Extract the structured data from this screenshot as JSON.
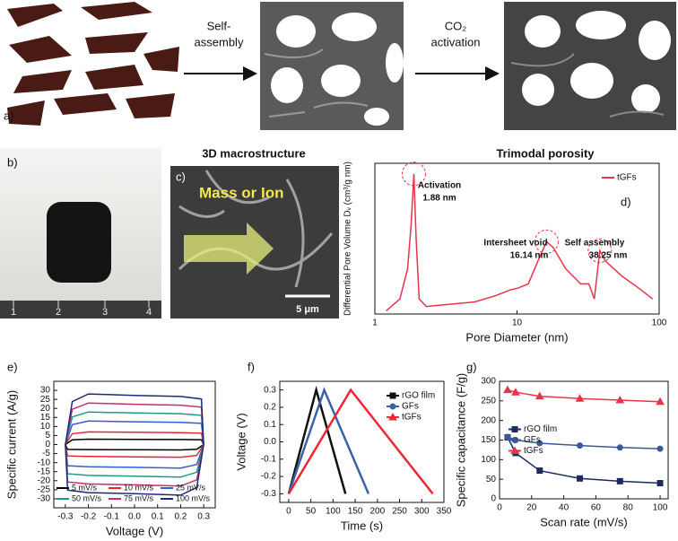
{
  "figure": {
    "panel_labels": [
      "a)",
      "b)",
      "c)"
    ],
    "arrows": [
      [
        "Self-",
        "assembly"
      ],
      [
        "CO₂",
        "activation"
      ]
    ],
    "sem_title": "3D macrostructure",
    "sem_label": "Mass or Ion",
    "scale_bar": "5 μm",
    "ruler": [
      "1",
      "2",
      "3",
      "4"
    ]
  },
  "chart_data": [
    {
      "type": "line",
      "panel_label": "d)",
      "title": "Trimodal porosity",
      "x_label": "Pore Diameter (nm)",
      "y_label": "Differential Pore Volume Dᵥ (cm³/g nm)",
      "xscale": "log",
      "xlim": [
        1,
        100
      ],
      "xticks": [
        1,
        10,
        100
      ],
      "ylim": [
        0,
        1
      ],
      "yticks": [],
      "x": [
        1.2,
        1.5,
        1.7,
        1.8,
        1.88,
        1.95,
        2.05,
        2.3,
        3,
        5,
        7,
        9,
        10,
        12,
        14,
        16.14,
        18,
        22,
        28,
        32,
        35,
        38.25,
        42,
        55,
        70,
        90
      ],
      "series": [
        {
          "name": "tGFs",
          "color": "#e8344a",
          "values": [
            0.02,
            0.1,
            0.3,
            0.6,
            0.93,
            0.5,
            0.1,
            0.05,
            0.06,
            0.08,
            0.12,
            0.16,
            0.17,
            0.2,
            0.35,
            0.48,
            0.44,
            0.3,
            0.2,
            0.2,
            0.1,
            0.42,
            0.35,
            0.25,
            0.18,
            0.1
          ]
        }
      ],
      "annotations": [
        "Activation",
        "1.88 nm",
        "Intersheet void",
        "16.14 nm",
        "Self assembly",
        "38.25 nm"
      ],
      "legend": "upper right"
    },
    {
      "type": "line",
      "panel_label": "e)",
      "closed": true,
      "x_label": "Voltage (V)",
      "y_label": "Specific current (A/g)",
      "xlim": [
        -0.35,
        0.35
      ],
      "xticks": [
        -0.3,
        -0.2,
        -0.1,
        {
          "value": 0,
          "label": "0.0"
        },
        0.1,
        0.2,
        0.3
      ],
      "ylim": [
        -35,
        35
      ],
      "yticks": [
        -30,
        -25,
        -20,
        -15,
        -10,
        -5,
        0,
        5,
        10,
        15,
        20,
        25,
        30
      ],
      "x": [
        -0.3,
        -0.27,
        -0.2,
        0,
        0.2,
        0.29,
        0.3,
        0.27,
        0.2,
        0,
        -0.2,
        -0.29
      ],
      "series": [
        {
          "name": "5 mV/s",
          "color": "#000000",
          "values": [
            0,
            2.6,
            3,
            2.9,
            2.8,
            2.7,
            0,
            -2.6,
            -3,
            -2.9,
            -2.8,
            -2.7
          ]
        },
        {
          "name": "10 mV/s",
          "color": "#e8252b",
          "values": [
            0,
            6,
            7,
            6.8,
            6.6,
            6.3,
            0,
            -6,
            -7,
            -6.8,
            -6.6,
            -6.3
          ]
        },
        {
          "name": "25 mV/s",
          "color": "#2f5fd0",
          "values": [
            0,
            11,
            13,
            12.6,
            12.3,
            11.7,
            0,
            -11,
            -13,
            -12.6,
            -12.3,
            -11.7
          ]
        },
        {
          "name": "50 mV/s",
          "color": "#1a9a8a",
          "values": [
            0,
            15.3,
            18,
            17.5,
            17.1,
            16.2,
            0,
            -15.3,
            -18,
            -17.5,
            -17.1,
            -16.2
          ]
        },
        {
          "name": "75 mV/s",
          "color": "#c2306e",
          "values": [
            0,
            19.5,
            23,
            22.3,
            21.8,
            20.7,
            0,
            -19.5,
            -23,
            -22.3,
            -21.8,
            -20.7
          ]
        },
        {
          "name": "100 mV/s",
          "color": "#1c2a7a",
          "values": [
            0,
            23.8,
            28,
            27.2,
            26.6,
            25.2,
            0,
            -23.8,
            -28,
            -27.2,
            -26.6,
            -25.2
          ]
        }
      ],
      "legend": "lower center",
      "legend_columns": 3
    },
    {
      "type": "line",
      "panel_label": "f)",
      "markers_on_line": false,
      "x_label": "Time (s)",
      "y_label": "Voltage (V)",
      "xlim": [
        -20,
        350
      ],
      "xticks": [
        0,
        50,
        100,
        150,
        200,
        250,
        300,
        350
      ],
      "ylim": [
        -0.35,
        0.35
      ],
      "yticks": [
        -0.3,
        -0.2,
        -0.1,
        {
          "value": 0,
          "label": "0.0"
        },
        0.1,
        0.2,
        0.3
      ],
      "series": [
        {
          "name": "rGO film",
          "color": "#111111",
          "marker": "square",
          "x": [
            0,
            62,
            128
          ],
          "values": [
            -0.3,
            0.3,
            -0.3
          ]
        },
        {
          "name": "GFs",
          "color": "#3b62a8",
          "marker": "circle",
          "x": [
            0,
            80,
            180
          ],
          "values": [
            -0.3,
            0.3,
            -0.3
          ]
        },
        {
          "name": "tGFs",
          "color": "#ee2737",
          "marker": "triangle",
          "x": [
            0,
            140,
            325
          ],
          "values": [
            -0.3,
            0.3,
            -0.3
          ]
        }
      ],
      "legend": "upper right"
    },
    {
      "type": "line",
      "panel_label": "g)",
      "markers_on_line": true,
      "x_label": "Scan rate (mV/s)",
      "y_label": "Specific capacitance (F/g)",
      "xlim": [
        0,
        105
      ],
      "xticks": [
        0,
        20,
        40,
        60,
        80,
        100
      ],
      "ylim": [
        0,
        300
      ],
      "yticks": [
        0,
        50,
        100,
        150,
        200,
        250,
        300
      ],
      "x": [
        5,
        10,
        25,
        50,
        75,
        100
      ],
      "series": [
        {
          "name": "rGO film",
          "color": "#1a2b5e",
          "marker": "square",
          "values": [
            157,
            117,
            72,
            52,
            45,
            40
          ]
        },
        {
          "name": "GFs",
          "color": "#3b5998",
          "marker": "circle",
          "values": [
            158,
            150,
            142,
            136,
            131,
            128
          ]
        },
        {
          "name": "tGFs",
          "color": "#e8344a",
          "marker": "triangle",
          "values": [
            278,
            272,
            262,
            256,
            252,
            248
          ]
        }
      ],
      "legend": "center left"
    }
  ]
}
